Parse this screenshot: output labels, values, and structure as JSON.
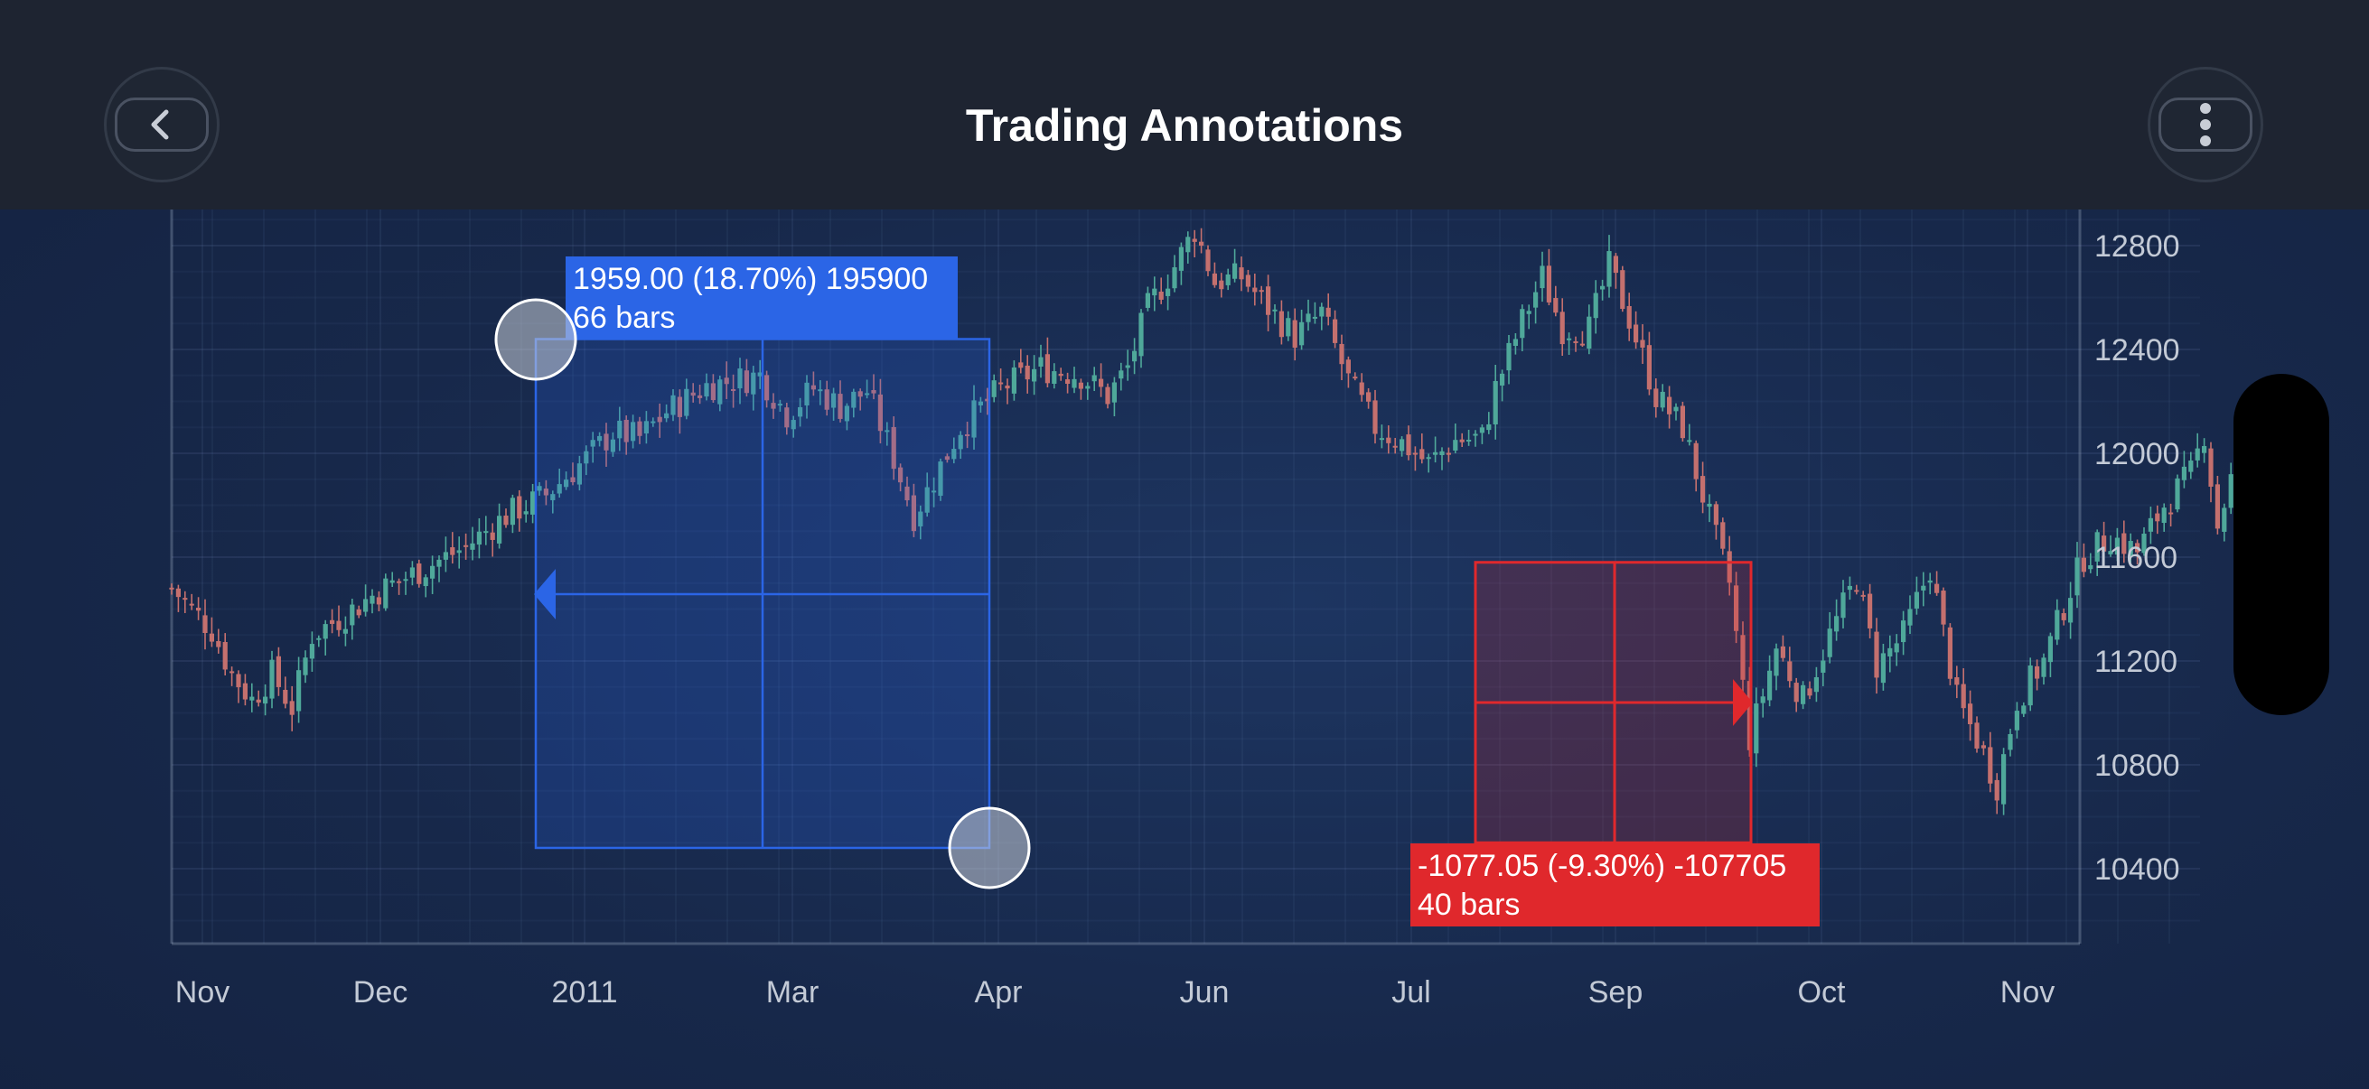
{
  "header": {
    "title": "Trading Annotations",
    "back_icon": "chevron-left-icon",
    "menu_icon": "more-vertical-icon"
  },
  "colors": {
    "up": "#4fa89a",
    "down": "#c4706e",
    "blue_accent": "#2b65e6",
    "red_accent": "#e0282c"
  },
  "chart_data": {
    "type": "candlestick",
    "title": "",
    "x_ticks": [
      "Nov",
      "Dec",
      "2011",
      "Mar",
      "Apr",
      "Jun",
      "Jul",
      "Sep",
      "Oct",
      "Nov"
    ],
    "y_ticks": [
      10400,
      10800,
      11200,
      11600,
      12000,
      12400,
      12800
    ],
    "ylim": [
      10100,
      12920
    ],
    "grid": true,
    "close_path": [
      [
        0,
        11480
      ],
      [
        6,
        11320
      ],
      [
        9,
        11150
      ],
      [
        12,
        11050
      ],
      [
        15,
        11150
      ],
      [
        18,
        11020
      ],
      [
        21,
        11300
      ],
      [
        26,
        11380
      ],
      [
        31,
        11470
      ],
      [
        38,
        11560
      ],
      [
        44,
        11640
      ],
      [
        50,
        11760
      ],
      [
        56,
        11840
      ],
      [
        62,
        11980
      ],
      [
        66,
        12080
      ],
      [
        70,
        12060
      ],
      [
        74,
        12160
      ],
      [
        80,
        12260
      ],
      [
        88,
        12300
      ],
      [
        92,
        12150
      ],
      [
        96,
        12250
      ],
      [
        100,
        12180
      ],
      [
        104,
        12240
      ],
      [
        108,
        11980
      ],
      [
        111,
        11760
      ],
      [
        114,
        11900
      ],
      [
        118,
        12100
      ],
      [
        124,
        12250
      ],
      [
        130,
        12330
      ],
      [
        136,
        12300
      ],
      [
        140,
        12220
      ],
      [
        143,
        12330
      ],
      [
        146,
        12560
      ],
      [
        150,
        12720
      ],
      [
        153,
        12860
      ],
      [
        156,
        12660
      ],
      [
        160,
        12680
      ],
      [
        164,
        12560
      ],
      [
        168,
        12450
      ],
      [
        172,
        12540
      ],
      [
        176,
        12280
      ],
      [
        180,
        12100
      ],
      [
        184,
        12040
      ],
      [
        188,
        11960
      ],
      [
        192,
        12050
      ],
      [
        196,
        12060
      ],
      [
        198,
        12250
      ],
      [
        202,
        12510
      ],
      [
        205,
        12680
      ],
      [
        208,
        12480
      ],
      [
        212,
        12480
      ],
      [
        215,
        12720
      ],
      [
        218,
        12520
      ],
      [
        222,
        12220
      ],
      [
        226,
        12100
      ],
      [
        230,
        11750
      ],
      [
        233,
        11500
      ],
      [
        236,
        10900
      ],
      [
        240,
        11250
      ],
      [
        244,
        11050
      ],
      [
        248,
        11300
      ],
      [
        252,
        11520
      ],
      [
        255,
        11180
      ],
      [
        259,
        11300
      ],
      [
        263,
        11560
      ],
      [
        267,
        11050
      ],
      [
        270,
        10900
      ],
      [
        273,
        10720
      ],
      [
        276,
        11050
      ],
      [
        280,
        11200
      ],
      [
        284,
        11480
      ],
      [
        286,
        11600
      ],
      [
        290,
        11680
      ],
      [
        294,
        11620
      ],
      [
        298,
        11800
      ],
      [
        302,
        11920
      ],
      [
        304,
        12080
      ],
      [
        306,
        11720
      ],
      [
        308,
        11900
      ],
      [
        310,
        12030
      ]
    ],
    "measurements": [
      {
        "label_line1": "1959.00 (18.70%) 195900",
        "label_line2": "66 bars",
        "direction": "up",
        "from_price": 10480,
        "to_price": 12440
      },
      {
        "label_line1": "-1077.05 (-9.30%) -107705",
        "label_line2": "40 bars",
        "direction": "down",
        "from_price": 11580,
        "to_price": 10500
      }
    ]
  }
}
